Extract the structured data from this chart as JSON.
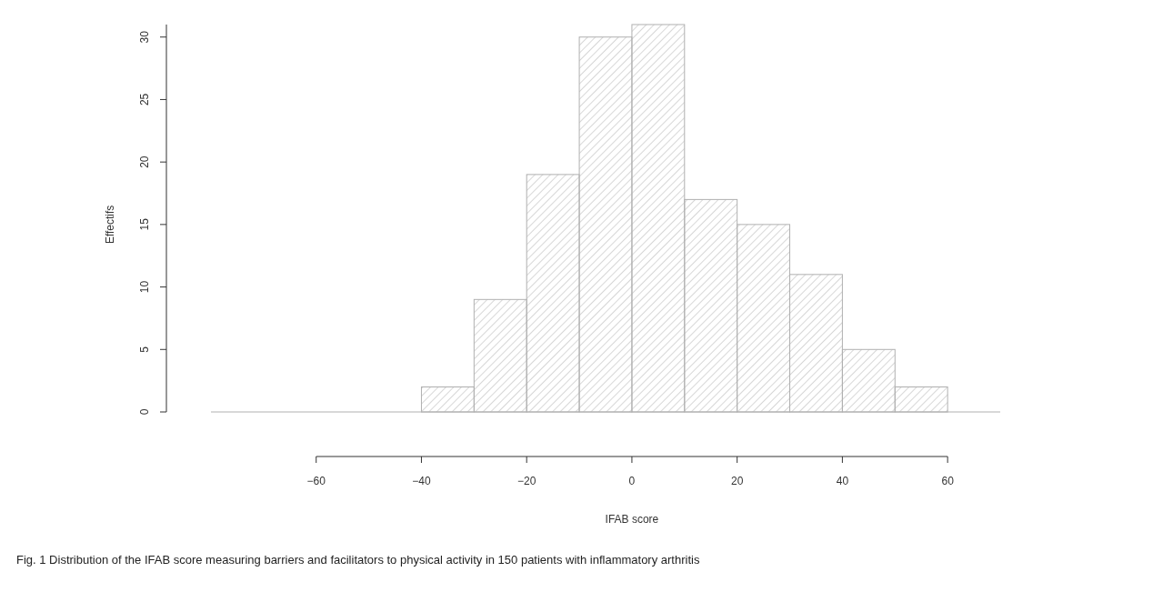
{
  "chart_data": {
    "type": "histogram",
    "title": "Fig. 1  Distribution of the IFAB score measuring barriers and facilitators to physical activity in 150 patients with inflammatory arthritis",
    "xlabel": "IFAB score",
    "ylabel": "Effectifs",
    "bins": [
      -40,
      -30,
      -20,
      -10,
      0,
      10,
      20,
      30,
      40,
      50,
      60
    ],
    "values": [
      2,
      9,
      19,
      30,
      31,
      17,
      15,
      11,
      5,
      2
    ],
    "color": "#b0b0b0",
    "xlim": [
      -80,
      70
    ],
    "xticks": [
      -60,
      -40,
      -20,
      0,
      20,
      40,
      60
    ],
    "ylim": [
      0,
      31
    ],
    "yticks": [
      0,
      5,
      10,
      15,
      20,
      25,
      30
    ],
    "grid": false
  }
}
